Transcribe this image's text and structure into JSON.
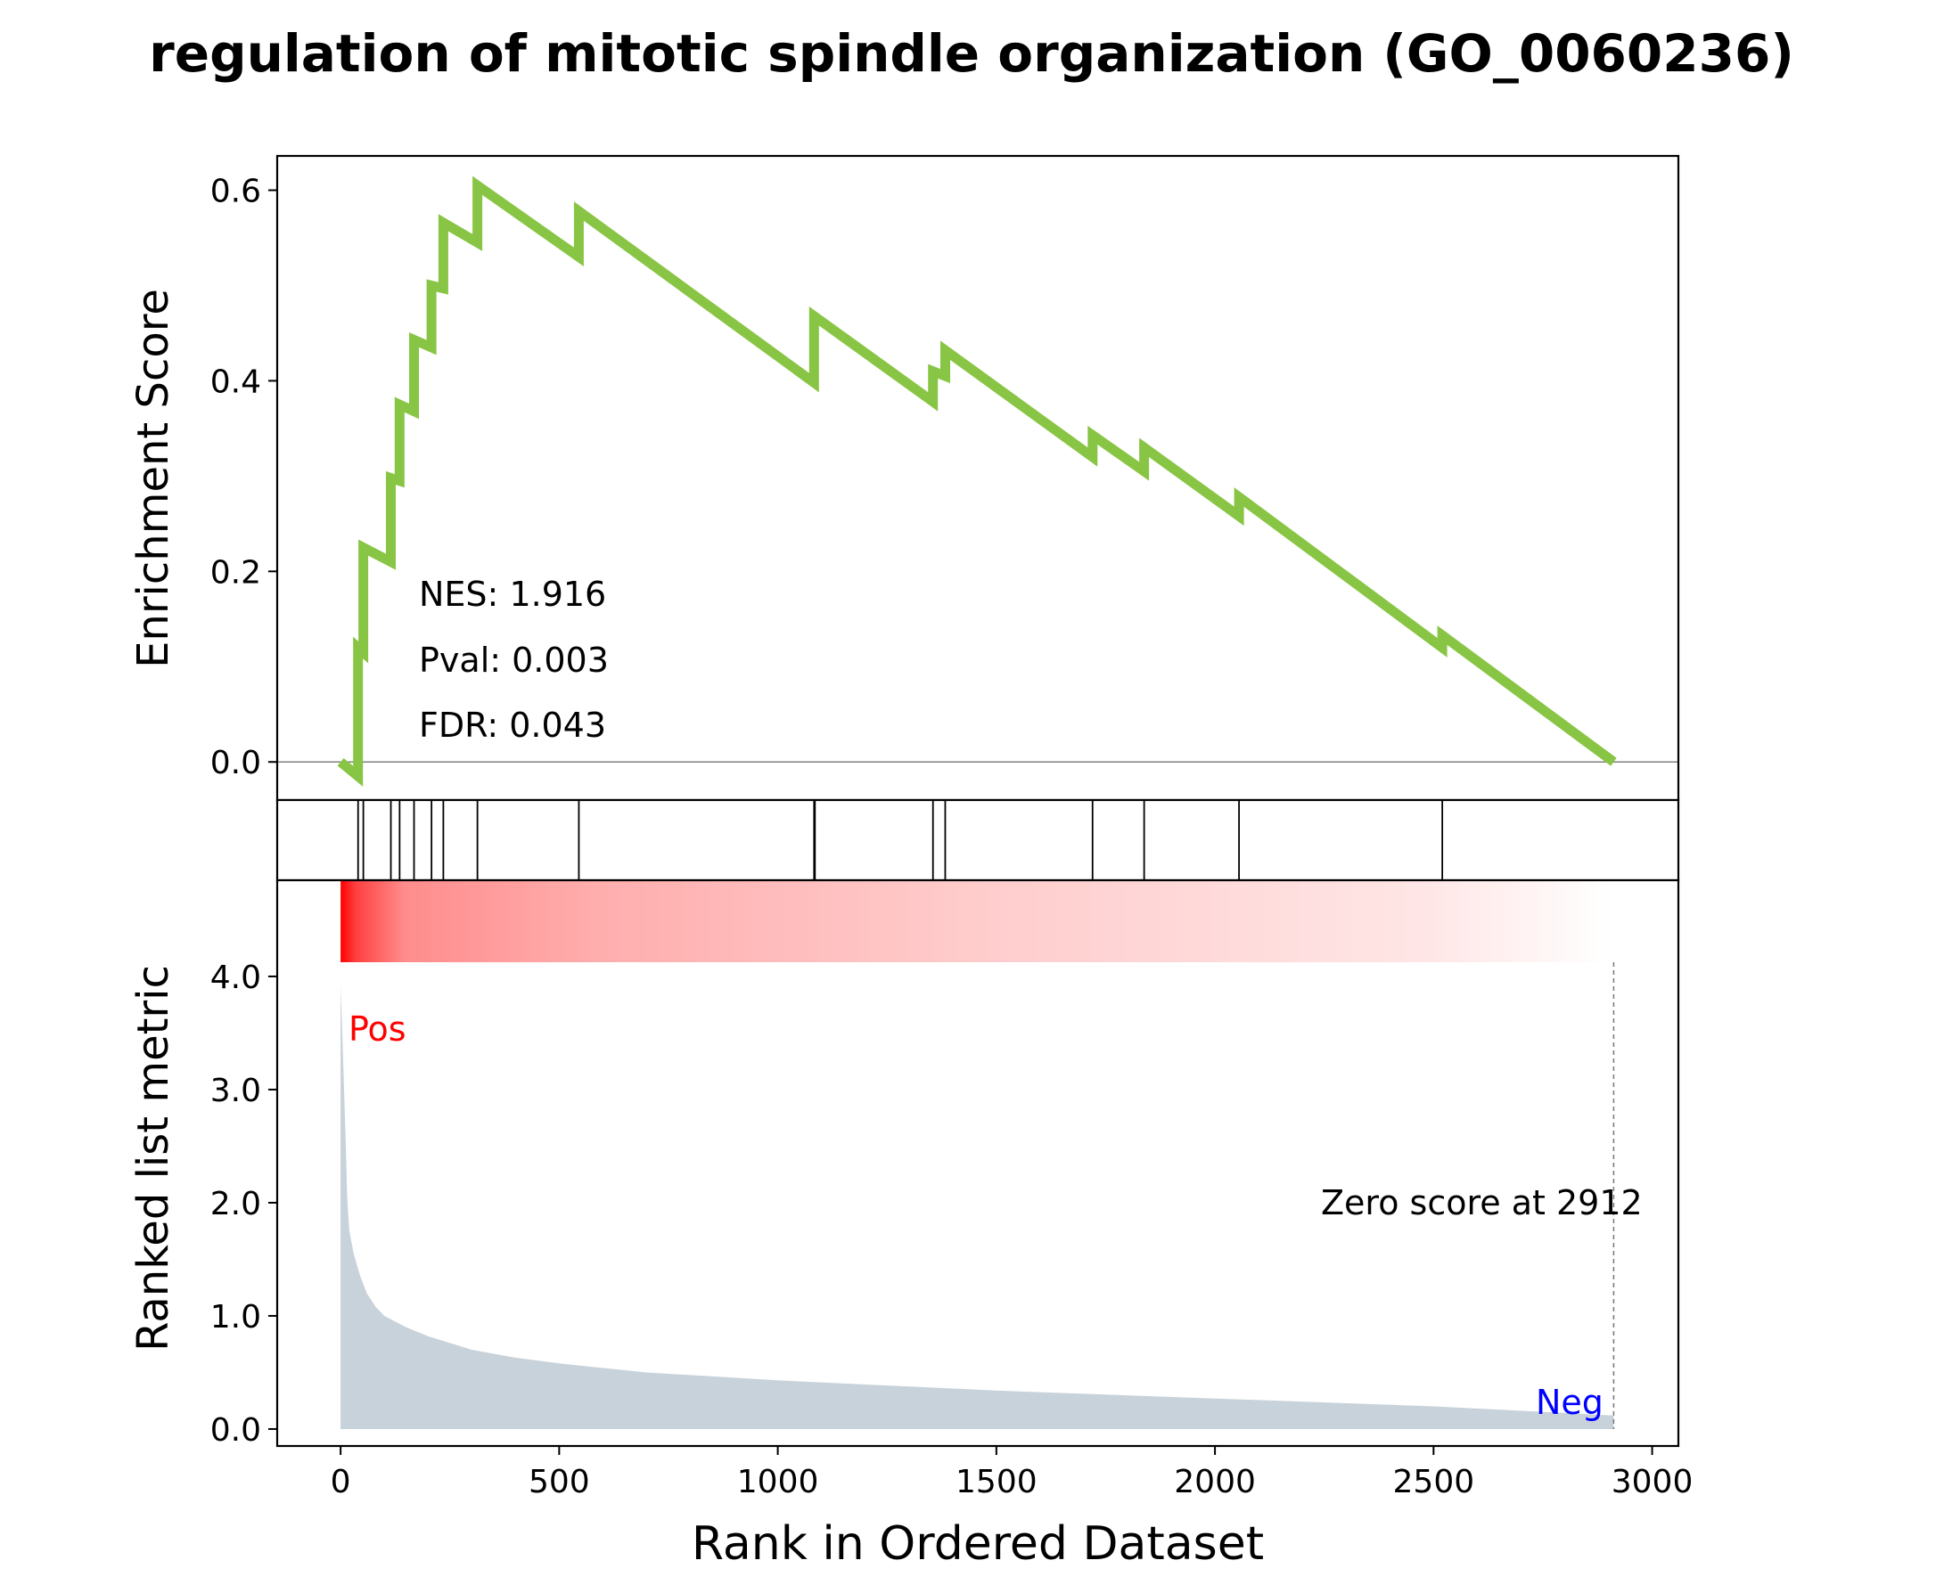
{
  "chart_data": {
    "type": "line",
    "title": "regulation of mitotic spindle organization (GO_0060236)",
    "xlabel": "Rank in Ordered Dataset",
    "xlim": [
      -145,
      3060
    ],
    "xticks": [
      0,
      500,
      1000,
      1500,
      2000,
      2500,
      3000
    ],
    "es_panel": {
      "ylabel": "Enrichment Score",
      "ylim": [
        -0.04,
        0.636
      ],
      "yticks": [
        "0.0",
        "0.2",
        "0.4",
        "0.6"
      ],
      "color": "#88c544",
      "stats": [
        "NES: 1.916",
        "Pval: 0.003",
        "FDR: 0.043"
      ],
      "points": [
        [
          0,
          0.0
        ],
        [
          40,
          -0.015
        ],
        [
          40,
          0.12
        ],
        [
          52,
          0.115
        ],
        [
          52,
          0.225
        ],
        [
          115,
          0.21
        ],
        [
          115,
          0.298
        ],
        [
          135,
          0.295
        ],
        [
          135,
          0.375
        ],
        [
          168,
          0.368
        ],
        [
          168,
          0.443
        ],
        [
          208,
          0.435
        ],
        [
          208,
          0.5
        ],
        [
          235,
          0.497
        ],
        [
          235,
          0.566
        ],
        [
          313,
          0.545
        ],
        [
          313,
          0.605
        ],
        [
          545,
          0.53
        ],
        [
          545,
          0.578
        ],
        [
          1083,
          0.398
        ],
        [
          1083,
          0.468
        ],
        [
          1355,
          0.378
        ],
        [
          1355,
          0.41
        ],
        [
          1383,
          0.405
        ],
        [
          1383,
          0.432
        ],
        [
          1720,
          0.32
        ],
        [
          1720,
          0.343
        ],
        [
          1838,
          0.305
        ],
        [
          1838,
          0.33
        ],
        [
          2055,
          0.258
        ],
        [
          2055,
          0.278
        ],
        [
          2520,
          0.12
        ],
        [
          2520,
          0.133
        ],
        [
          2912,
          0.0
        ]
      ]
    },
    "hit_ranks": [
      40,
      52,
      115,
      135,
      168,
      208,
      235,
      313,
      545,
      1083,
      1085,
      1355,
      1383,
      1720,
      1838,
      2055,
      2520
    ],
    "metric_panel": {
      "ylabel": "Ranked list metric",
      "ylim": [
        -0.15,
        4.85
      ],
      "yticks": [
        "0.0",
        "1.0",
        "2.0",
        "3.0",
        "4.0"
      ],
      "fill_color": "#c8d2da",
      "heatmap_color": "#ff0000",
      "pos_label": "Pos",
      "neg_label": "Neg",
      "pos_color": "#ff0000",
      "neg_color": "#0000ff",
      "zero_score_label": "Zero score at 2912",
      "zero_rank": 2912,
      "curve": [
        [
          0,
          3.92
        ],
        [
          3,
          3.6
        ],
        [
          8,
          3.0
        ],
        [
          12,
          2.5
        ],
        [
          15,
          2.05
        ],
        [
          20,
          1.75
        ],
        [
          30,
          1.55
        ],
        [
          45,
          1.35
        ],
        [
          60,
          1.2
        ],
        [
          80,
          1.08
        ],
        [
          100,
          1.0
        ],
        [
          150,
          0.9
        ],
        [
          200,
          0.82
        ],
        [
          250,
          0.76
        ],
        [
          300,
          0.7
        ],
        [
          400,
          0.63
        ],
        [
          500,
          0.58
        ],
        [
          700,
          0.5
        ],
        [
          1000,
          0.43
        ],
        [
          1500,
          0.34
        ],
        [
          2000,
          0.27
        ],
        [
          2500,
          0.2
        ],
        [
          2912,
          0.12
        ]
      ]
    }
  }
}
